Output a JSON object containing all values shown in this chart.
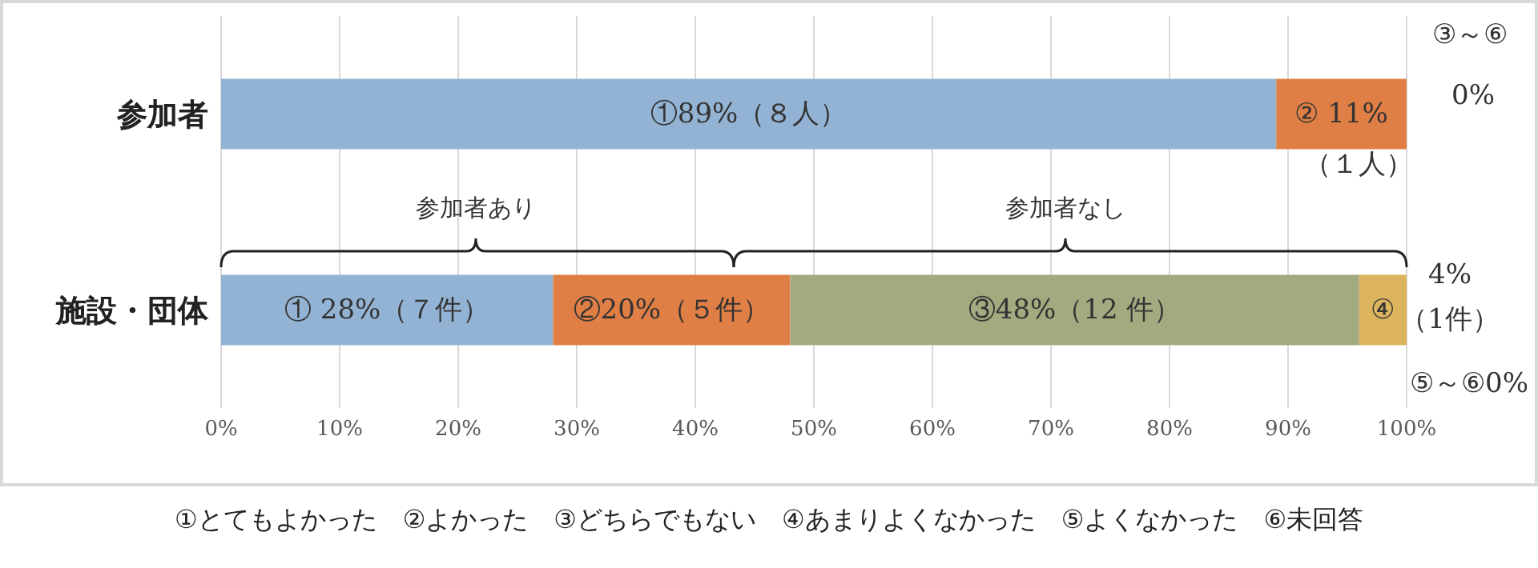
{
  "chart_data": {
    "type": "bar",
    "orientation": "horizontal",
    "stacked": true,
    "categories": [
      "参加者",
      "施設・団体"
    ],
    "series": [
      {
        "color": "#93b3d4",
        "values": [
          89,
          28
        ],
        "value_labels": [
          "①89%（８人）",
          "① 28%（７件）"
        ]
      },
      {
        "color": "#df7f45",
        "values": [
          11,
          20
        ],
        "value_labels": [
          "② 11%",
          "②20%（５件）"
        ]
      },
      {
        "color": "#a2aa80",
        "values": [
          0,
          48
        ],
        "value_labels": [
          null,
          "③48%（12 件）"
        ]
      },
      {
        "color": "#dcb45d",
        "values": [
          0,
          4
        ],
        "value_labels": [
          null,
          "④"
        ]
      }
    ],
    "xlim": [
      0,
      100
    ],
    "xticks": [
      {
        "value": 0,
        "label": "0%"
      },
      {
        "value": 10,
        "label": "10%"
      },
      {
        "value": 20,
        "label": "20%"
      },
      {
        "value": 30,
        "label": "30%"
      },
      {
        "value": 40,
        "label": "40%"
      },
      {
        "value": 50,
        "label": "50%"
      },
      {
        "value": 60,
        "label": "60%"
      },
      {
        "value": 70,
        "label": "70%"
      },
      {
        "value": 80,
        "label": "80%"
      },
      {
        "value": 90,
        "label": "90%"
      },
      {
        "value": 100,
        "label": "100%"
      }
    ],
    "grid": "x",
    "annotations": [
      "③～⑥",
      "0%",
      "（１人）",
      "参加者あり",
      "参加者なし",
      "4%",
      "（1件）",
      "⑤～⑥0%",
      "①とてもよかった　②よかった　③どちらでもない　④あまりよくなかった　⑤よくなかった　⑥未回答"
    ]
  }
}
